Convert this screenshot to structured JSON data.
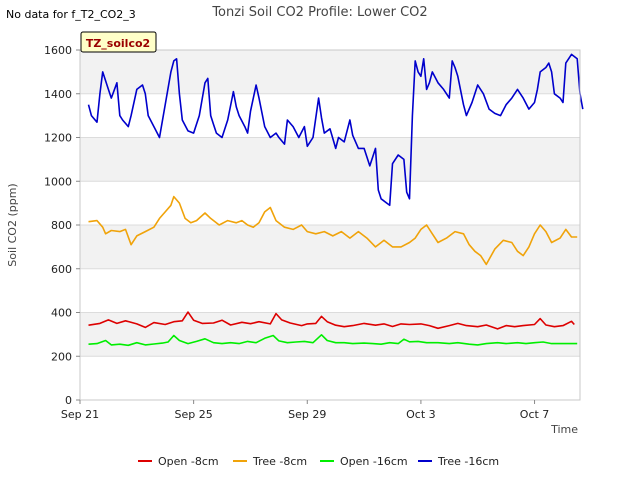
{
  "header": {
    "no_data_note": "No data for f_T2_CO2_3"
  },
  "chart_data": {
    "type": "line",
    "title": "Tonzi Soil CO2 Profile: Lower CO2",
    "xlabel": "Time",
    "ylabel": "Soil CO2 (ppm)",
    "ylim": [
      0,
      1600
    ],
    "yticks": [
      0,
      200,
      400,
      600,
      800,
      1000,
      1200,
      1400,
      1600
    ],
    "xlim": [
      0,
      17.6
    ],
    "xticks": [
      {
        "x": 0,
        "label": "Sep 21"
      },
      {
        "x": 4,
        "label": "Sep 25"
      },
      {
        "x": 8,
        "label": "Sep 29"
      },
      {
        "x": 12,
        "label": "Oct 3"
      },
      {
        "x": 16,
        "label": "Oct 7"
      }
    ],
    "site_badge": "TZ_soilco2",
    "band_color": "#f2f2f2",
    "series": [
      {
        "name": "Open -8cm",
        "color": "#dd0000",
        "points": [
          [
            0.3,
            342
          ],
          [
            0.7,
            350
          ],
          [
            1.0,
            366
          ],
          [
            1.3,
            350
          ],
          [
            1.6,
            362
          ],
          [
            2.0,
            348
          ],
          [
            2.3,
            332
          ],
          [
            2.6,
            354
          ],
          [
            3.0,
            345
          ],
          [
            3.3,
            358
          ],
          [
            3.6,
            362
          ],
          [
            3.8,
            402
          ],
          [
            4.0,
            365
          ],
          [
            4.3,
            350
          ],
          [
            4.7,
            352
          ],
          [
            5.0,
            365
          ],
          [
            5.3,
            343
          ],
          [
            5.7,
            355
          ],
          [
            6.0,
            349
          ],
          [
            6.3,
            358
          ],
          [
            6.7,
            348
          ],
          [
            6.9,
            395
          ],
          [
            7.1,
            366
          ],
          [
            7.4,
            352
          ],
          [
            7.8,
            340
          ],
          [
            8.0,
            348
          ],
          [
            8.3,
            350
          ],
          [
            8.5,
            382
          ],
          [
            8.7,
            358
          ],
          [
            9.0,
            342
          ],
          [
            9.3,
            335
          ],
          [
            9.6,
            340
          ],
          [
            10.0,
            350
          ],
          [
            10.4,
            342
          ],
          [
            10.7,
            348
          ],
          [
            11.0,
            336
          ],
          [
            11.3,
            348
          ],
          [
            11.6,
            345
          ],
          [
            12.0,
            348
          ],
          [
            12.3,
            340
          ],
          [
            12.6,
            328
          ],
          [
            13.0,
            340
          ],
          [
            13.3,
            350
          ],
          [
            13.6,
            340
          ],
          [
            14.0,
            335
          ],
          [
            14.3,
            343
          ],
          [
            14.7,
            325
          ],
          [
            15.0,
            340
          ],
          [
            15.3,
            335
          ],
          [
            15.6,
            340
          ],
          [
            16.0,
            345
          ],
          [
            16.2,
            372
          ],
          [
            16.4,
            343
          ],
          [
            16.7,
            335
          ],
          [
            17.0,
            340
          ],
          [
            17.3,
            360
          ],
          [
            17.4,
            345
          ]
        ]
      },
      {
        "name": "Tree -8cm",
        "color": "#f0a30a",
        "points": [
          [
            0.3,
            815
          ],
          [
            0.6,
            820
          ],
          [
            0.8,
            790
          ],
          [
            0.9,
            760
          ],
          [
            1.1,
            775
          ],
          [
            1.4,
            770
          ],
          [
            1.6,
            780
          ],
          [
            1.8,
            710
          ],
          [
            2.0,
            750
          ],
          [
            2.3,
            770
          ],
          [
            2.6,
            790
          ],
          [
            2.8,
            830
          ],
          [
            3.0,
            860
          ],
          [
            3.2,
            890
          ],
          [
            3.3,
            930
          ],
          [
            3.5,
            900
          ],
          [
            3.7,
            830
          ],
          [
            3.9,
            810
          ],
          [
            4.1,
            820
          ],
          [
            4.4,
            855
          ],
          [
            4.6,
            830
          ],
          [
            4.9,
            800
          ],
          [
            5.2,
            820
          ],
          [
            5.5,
            810
          ],
          [
            5.7,
            820
          ],
          [
            5.9,
            800
          ],
          [
            6.1,
            790
          ],
          [
            6.3,
            810
          ],
          [
            6.5,
            860
          ],
          [
            6.7,
            880
          ],
          [
            6.9,
            820
          ],
          [
            7.2,
            790
          ],
          [
            7.5,
            780
          ],
          [
            7.8,
            800
          ],
          [
            8.0,
            770
          ],
          [
            8.3,
            760
          ],
          [
            8.6,
            770
          ],
          [
            8.9,
            750
          ],
          [
            9.2,
            770
          ],
          [
            9.5,
            740
          ],
          [
            9.8,
            770
          ],
          [
            10.1,
            740
          ],
          [
            10.4,
            700
          ],
          [
            10.7,
            730
          ],
          [
            11.0,
            700
          ],
          [
            11.3,
            700
          ],
          [
            11.6,
            720
          ],
          [
            11.8,
            740
          ],
          [
            12.0,
            780
          ],
          [
            12.2,
            800
          ],
          [
            12.4,
            760
          ],
          [
            12.6,
            720
          ],
          [
            12.9,
            740
          ],
          [
            13.2,
            770
          ],
          [
            13.5,
            760
          ],
          [
            13.7,
            710
          ],
          [
            13.9,
            680
          ],
          [
            14.1,
            660
          ],
          [
            14.3,
            620
          ],
          [
            14.6,
            690
          ],
          [
            14.9,
            730
          ],
          [
            15.2,
            720
          ],
          [
            15.4,
            680
          ],
          [
            15.6,
            660
          ],
          [
            15.8,
            700
          ],
          [
            16.0,
            760
          ],
          [
            16.2,
            800
          ],
          [
            16.4,
            770
          ],
          [
            16.6,
            720
          ],
          [
            16.9,
            740
          ],
          [
            17.1,
            780
          ],
          [
            17.3,
            745
          ],
          [
            17.5,
            745
          ]
        ]
      },
      {
        "name": "Open -16cm",
        "color": "#00ee00",
        "points": [
          [
            0.3,
            255
          ],
          [
            0.6,
            258
          ],
          [
            0.9,
            272
          ],
          [
            1.1,
            252
          ],
          [
            1.4,
            255
          ],
          [
            1.7,
            250
          ],
          [
            2.0,
            262
          ],
          [
            2.3,
            252
          ],
          [
            2.6,
            256
          ],
          [
            2.9,
            260
          ],
          [
            3.1,
            265
          ],
          [
            3.3,
            295
          ],
          [
            3.5,
            272
          ],
          [
            3.8,
            258
          ],
          [
            4.1,
            268
          ],
          [
            4.4,
            280
          ],
          [
            4.7,
            262
          ],
          [
            5.0,
            258
          ],
          [
            5.3,
            262
          ],
          [
            5.6,
            258
          ],
          [
            5.9,
            268
          ],
          [
            6.2,
            262
          ],
          [
            6.5,
            282
          ],
          [
            6.8,
            295
          ],
          [
            7.0,
            270
          ],
          [
            7.3,
            262
          ],
          [
            7.6,
            265
          ],
          [
            7.9,
            268
          ],
          [
            8.2,
            262
          ],
          [
            8.5,
            298
          ],
          [
            8.7,
            272
          ],
          [
            9.0,
            262
          ],
          [
            9.3,
            262
          ],
          [
            9.6,
            258
          ],
          [
            10.0,
            260
          ],
          [
            10.3,
            258
          ],
          [
            10.6,
            255
          ],
          [
            10.9,
            262
          ],
          [
            11.2,
            258
          ],
          [
            11.4,
            278
          ],
          [
            11.6,
            266
          ],
          [
            11.9,
            268
          ],
          [
            12.2,
            262
          ],
          [
            12.6,
            262
          ],
          [
            13.0,
            258
          ],
          [
            13.3,
            262
          ],
          [
            13.7,
            255
          ],
          [
            14.0,
            252
          ],
          [
            14.3,
            258
          ],
          [
            14.7,
            262
          ],
          [
            15.0,
            258
          ],
          [
            15.4,
            262
          ],
          [
            15.7,
            258
          ],
          [
            16.0,
            262
          ],
          [
            16.3,
            265
          ],
          [
            16.6,
            258
          ],
          [
            17.0,
            258
          ],
          [
            17.3,
            258
          ],
          [
            17.5,
            258
          ]
        ]
      },
      {
        "name": "Tree -16cm",
        "color": "#0000cc",
        "points": [
          [
            0.3,
            1350
          ],
          [
            0.4,
            1300
          ],
          [
            0.6,
            1270
          ],
          [
            0.7,
            1400
          ],
          [
            0.8,
            1500
          ],
          [
            1.0,
            1420
          ],
          [
            1.1,
            1380
          ],
          [
            1.3,
            1450
          ],
          [
            1.4,
            1300
          ],
          [
            1.5,
            1280
          ],
          [
            1.7,
            1250
          ],
          [
            1.8,
            1300
          ],
          [
            2.0,
            1420
          ],
          [
            2.2,
            1440
          ],
          [
            2.3,
            1400
          ],
          [
            2.4,
            1300
          ],
          [
            2.6,
            1250
          ],
          [
            2.8,
            1200
          ],
          [
            3.0,
            1350
          ],
          [
            3.2,
            1500
          ],
          [
            3.3,
            1550
          ],
          [
            3.4,
            1560
          ],
          [
            3.5,
            1400
          ],
          [
            3.6,
            1280
          ],
          [
            3.8,
            1230
          ],
          [
            4.0,
            1220
          ],
          [
            4.2,
            1300
          ],
          [
            4.4,
            1450
          ],
          [
            4.5,
            1470
          ],
          [
            4.6,
            1300
          ],
          [
            4.7,
            1260
          ],
          [
            4.8,
            1220
          ],
          [
            5.0,
            1200
          ],
          [
            5.2,
            1280
          ],
          [
            5.4,
            1410
          ],
          [
            5.5,
            1340
          ],
          [
            5.6,
            1300
          ],
          [
            5.8,
            1250
          ],
          [
            5.9,
            1220
          ],
          [
            6.0,
            1320
          ],
          [
            6.2,
            1440
          ],
          [
            6.3,
            1380
          ],
          [
            6.5,
            1250
          ],
          [
            6.7,
            1200
          ],
          [
            6.9,
            1220
          ],
          [
            7.0,
            1200
          ],
          [
            7.2,
            1170
          ],
          [
            7.3,
            1280
          ],
          [
            7.5,
            1250
          ],
          [
            7.7,
            1200
          ],
          [
            7.9,
            1250
          ],
          [
            8.0,
            1160
          ],
          [
            8.2,
            1200
          ],
          [
            8.4,
            1380
          ],
          [
            8.5,
            1290
          ],
          [
            8.6,
            1220
          ],
          [
            8.8,
            1240
          ],
          [
            9.0,
            1150
          ],
          [
            9.1,
            1200
          ],
          [
            9.3,
            1180
          ],
          [
            9.5,
            1280
          ],
          [
            9.6,
            1210
          ],
          [
            9.8,
            1150
          ],
          [
            10.0,
            1150
          ],
          [
            10.2,
            1070
          ],
          [
            10.4,
            1150
          ],
          [
            10.5,
            960
          ],
          [
            10.6,
            920
          ],
          [
            10.8,
            900
          ],
          [
            10.9,
            890
          ],
          [
            11.0,
            1080
          ],
          [
            11.2,
            1120
          ],
          [
            11.4,
            1100
          ],
          [
            11.5,
            950
          ],
          [
            11.6,
            920
          ],
          [
            11.7,
            1300
          ],
          [
            11.8,
            1550
          ],
          [
            11.9,
            1500
          ],
          [
            12.0,
            1480
          ],
          [
            12.1,
            1560
          ],
          [
            12.2,
            1420
          ],
          [
            12.3,
            1450
          ],
          [
            12.4,
            1500
          ],
          [
            12.6,
            1450
          ],
          [
            12.8,
            1420
          ],
          [
            13.0,
            1380
          ],
          [
            13.1,
            1550
          ],
          [
            13.2,
            1520
          ],
          [
            13.3,
            1480
          ],
          [
            13.5,
            1350
          ],
          [
            13.6,
            1300
          ],
          [
            13.8,
            1360
          ],
          [
            14.0,
            1440
          ],
          [
            14.2,
            1400
          ],
          [
            14.4,
            1330
          ],
          [
            14.6,
            1310
          ],
          [
            14.8,
            1300
          ],
          [
            15.0,
            1350
          ],
          [
            15.2,
            1380
          ],
          [
            15.4,
            1420
          ],
          [
            15.6,
            1380
          ],
          [
            15.8,
            1330
          ],
          [
            16.0,
            1360
          ],
          [
            16.1,
            1420
          ],
          [
            16.2,
            1500
          ],
          [
            16.4,
            1520
          ],
          [
            16.5,
            1540
          ],
          [
            16.6,
            1500
          ],
          [
            16.7,
            1400
          ],
          [
            16.9,
            1380
          ],
          [
            17.0,
            1360
          ],
          [
            17.1,
            1540
          ],
          [
            17.3,
            1580
          ],
          [
            17.5,
            1560
          ],
          [
            17.6,
            1400
          ],
          [
            17.7,
            1330
          ]
        ]
      }
    ]
  }
}
